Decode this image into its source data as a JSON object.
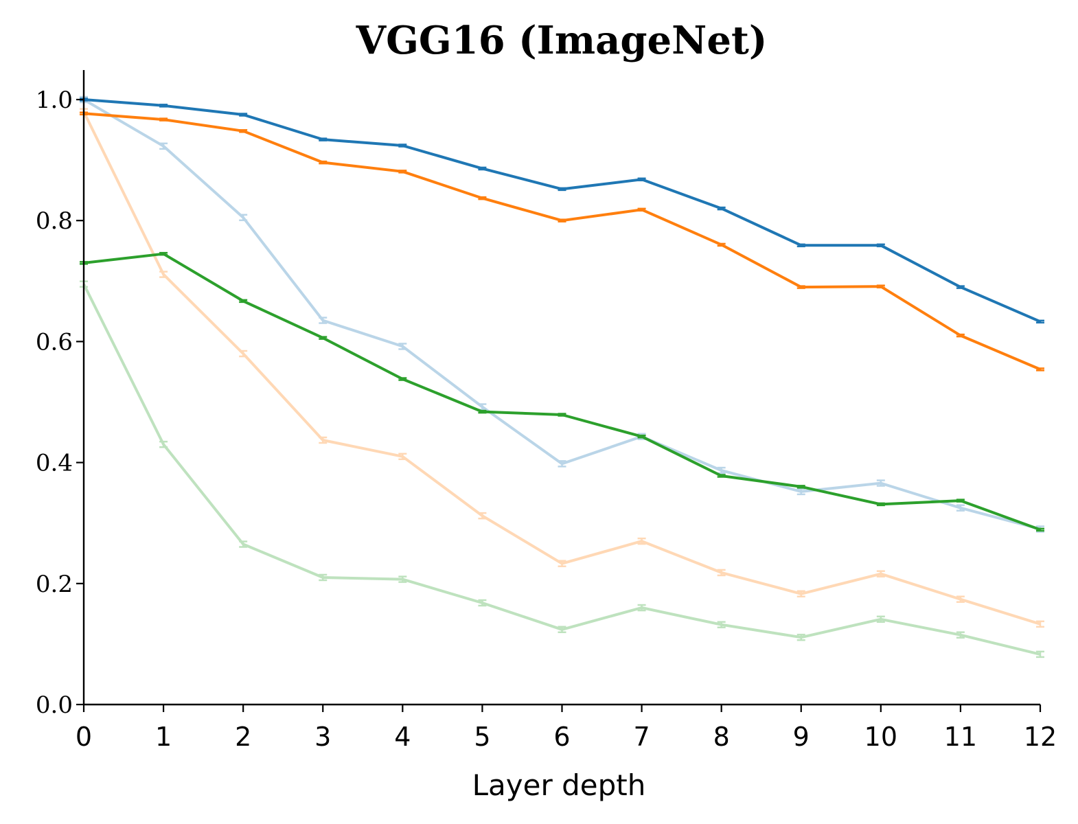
{
  "chart_data": {
    "type": "line",
    "title": "VGG16 (ImageNet)",
    "xlabel": "Layer depth",
    "ylabel": "",
    "xlim": [
      0,
      12
    ],
    "ylim": [
      0,
      1.05
    ],
    "grid": false,
    "x": [
      0,
      1,
      2,
      3,
      4,
      5,
      6,
      7,
      8,
      9,
      10,
      11,
      12
    ],
    "x_tick_labels": [
      "0",
      "1",
      "2",
      "3",
      "4",
      "5",
      "6",
      "7",
      "8",
      "9",
      "10",
      "11",
      "12"
    ],
    "y_ticks": [
      0.0,
      0.2,
      0.4,
      0.6,
      0.8,
      1.0
    ],
    "y_tick_labels": [
      "0.0",
      "0.2",
      "0.4",
      "0.6",
      "0.8",
      "1.0"
    ],
    "series": [
      {
        "name": "blue-light",
        "color": "#1f77b4",
        "opacity": 0.3,
        "error_bars": true,
        "values": [
          1.0,
          0.923,
          0.805,
          0.635,
          0.592,
          0.492,
          0.398,
          0.443,
          0.387,
          0.352,
          0.366,
          0.325,
          0.29
        ]
      },
      {
        "name": "orange-light",
        "color": "#ff7f0e",
        "opacity": 0.3,
        "error_bars": true,
        "values": [
          0.98,
          0.711,
          0.58,
          0.437,
          0.41,
          0.312,
          0.233,
          0.27,
          0.218,
          0.183,
          0.216,
          0.174,
          0.133
        ]
      },
      {
        "name": "green-light",
        "color": "#2ca02c",
        "opacity": 0.3,
        "error_bars": true,
        "values": [
          0.695,
          0.43,
          0.265,
          0.21,
          0.207,
          0.168,
          0.124,
          0.16,
          0.132,
          0.111,
          0.141,
          0.115,
          0.083
        ]
      },
      {
        "name": "blue",
        "color": "#1f77b4",
        "opacity": 1,
        "error_bars": false,
        "values": [
          1.0,
          0.99,
          0.975,
          0.934,
          0.924,
          0.886,
          0.852,
          0.868,
          0.82,
          0.759,
          0.759,
          0.69,
          0.633
        ]
      },
      {
        "name": "orange",
        "color": "#ff7f0e",
        "opacity": 1,
        "error_bars": false,
        "values": [
          0.977,
          0.967,
          0.948,
          0.896,
          0.881,
          0.837,
          0.8,
          0.818,
          0.76,
          0.69,
          0.691,
          0.61,
          0.554
        ]
      },
      {
        "name": "green",
        "color": "#2ca02c",
        "opacity": 1,
        "error_bars": false,
        "values": [
          0.73,
          0.745,
          0.667,
          0.606,
          0.538,
          0.484,
          0.479,
          0.443,
          0.378,
          0.36,
          0.331,
          0.337,
          0.289
        ]
      }
    ]
  }
}
